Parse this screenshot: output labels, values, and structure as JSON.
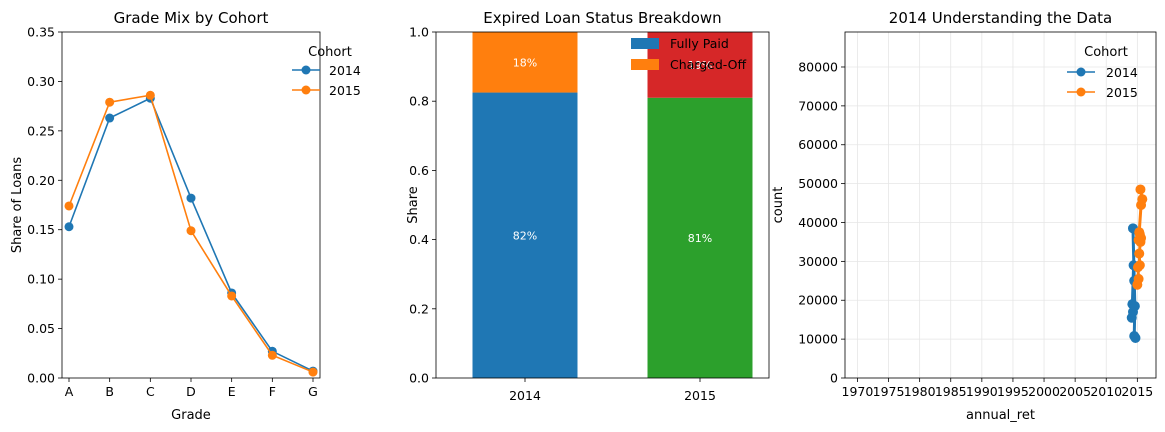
{
  "chart_data": [
    {
      "type": "line",
      "title": "Grade Mix by Cohort",
      "xlabel": "Grade",
      "ylabel": "Share of Loans",
      "categories": [
        "A",
        "B",
        "C",
        "D",
        "E",
        "F",
        "G"
      ],
      "ylim": [
        0,
        0.35
      ],
      "yticks": [
        "0.00",
        "0.05",
        "0.10",
        "0.15",
        "0.20",
        "0.25",
        "0.30",
        "0.35"
      ],
      "legend": {
        "title": "Cohort",
        "placement": "top-right"
      },
      "grid": false,
      "series": [
        {
          "name": "2014",
          "color": "#1f77b4",
          "values": [
            0.153,
            0.263,
            0.283,
            0.182,
            0.086,
            0.027,
            0.007
          ]
        },
        {
          "name": "2015",
          "color": "#ff7f0e",
          "values": [
            0.174,
            0.279,
            0.286,
            0.149,
            0.083,
            0.023,
            0.006
          ]
        }
      ]
    },
    {
      "type": "bar",
      "stacked": true,
      "title": "Expired Loan Status Breakdown",
      "xlabel": "",
      "ylabel": "Share",
      "categories": [
        "2014",
        "2015"
      ],
      "ylim": [
        0,
        1.0
      ],
      "yticks": [
        "0.0",
        "0.2",
        "0.4",
        "0.6",
        "0.8",
        "1.0"
      ],
      "legend": {
        "placement": "top-right"
      },
      "grid": false,
      "series": [
        {
          "name": "Fully Paid",
          "values": [
            0.825,
            0.81
          ],
          "labels": [
            "82%",
            "81%"
          ],
          "colors": [
            "#1f77b4",
            "#2ca02c"
          ]
        },
        {
          "name": "Charged-Off",
          "values": [
            0.175,
            0.19
          ],
          "labels": [
            "18%",
            "19%"
          ],
          "colors": [
            "#ff7f0e",
            "#d62728"
          ]
        }
      ],
      "legend_colors": [
        "#1f77b4",
        "#ff7f0e"
      ]
    },
    {
      "type": "line",
      "title": "2014 Understanding the Data",
      "xlabel": "annual_ret",
      "ylabel": "count",
      "xlim": [
        1968,
        2018
      ],
      "ylim": [
        0,
        89000
      ],
      "xticks": [
        1970,
        1975,
        1980,
        1985,
        1990,
        1995,
        2000,
        2005,
        2010,
        2015
      ],
      "yticks": [
        0,
        10000,
        20000,
        30000,
        40000,
        50000,
        60000,
        70000,
        80000
      ],
      "legend": {
        "title": "Cohort",
        "placement": "top-right"
      },
      "grid": true,
      "series": [
        {
          "name": "2014",
          "color": "#1f77b4",
          "x": [
            2014.1,
            2014.3,
            2014.2,
            2014.4,
            2014.5,
            2014.3,
            2014.6,
            2014.5,
            2014.7
          ],
          "y": [
            15500,
            17000,
            19000,
            29000,
            25000,
            38500,
            18500,
            10800,
            10300
          ]
        },
        {
          "name": "2015",
          "color": "#ff7f0e",
          "x": [
            2015.0,
            2015.2,
            2015.1,
            2015.4,
            2015.3,
            2015.5,
            2015.2,
            2015.6,
            2015.4,
            2015.3,
            2015.6,
            2015.8,
            2015.5
          ],
          "y": [
            24000,
            25500,
            28500,
            29000,
            32000,
            35000,
            35500,
            36000,
            37000,
            37500,
            44500,
            46000,
            48500
          ]
        }
      ]
    }
  ]
}
